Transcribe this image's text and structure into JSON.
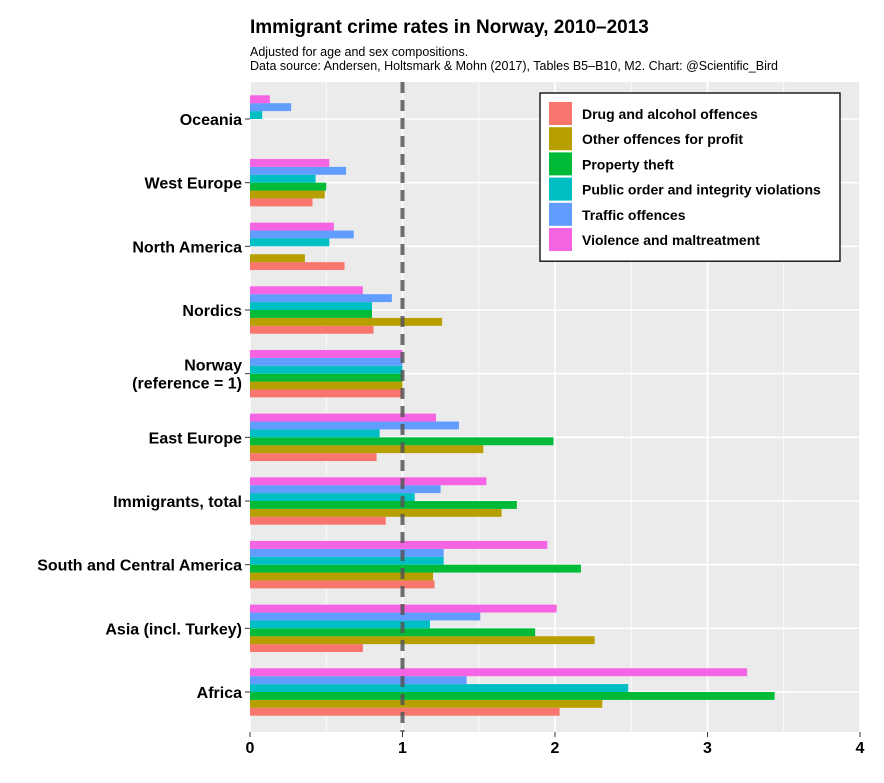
{
  "chart_data": {
    "type": "bar",
    "orientation": "horizontal",
    "title": "Immigrant crime rates in Norway, 2010–2013",
    "subtitle_lines": [
      "Adjusted for age and sex compositions.",
      "Data source: Andersen, Holtsmark & Mohn (2017), Tables B5–B10, M2.  Chart: @Scientific_Bird"
    ],
    "categories": [
      [
        "Oceania"
      ],
      [
        "West Europe"
      ],
      [
        "North America"
      ],
      [
        "Nordics"
      ],
      [
        "Norway",
        "(reference = 1)"
      ],
      [
        "East Europe"
      ],
      [
        "Immigrants, total"
      ],
      [
        "South and Central America"
      ],
      [
        "Asia (incl. Turkey)"
      ],
      [
        "Africa"
      ]
    ],
    "xlim": [
      0,
      4
    ],
    "xticks": [
      "0",
      "1",
      "2",
      "3",
      "4"
    ],
    "reference_line": 1,
    "grid": true,
    "legend_position": "top-right",
    "series": [
      {
        "name": "Drug and alcohol offences",
        "color": "#F8766D",
        "values": [
          null,
          0.41,
          0.62,
          0.81,
          1.0,
          0.83,
          0.89,
          1.21,
          0.74,
          2.03
        ]
      },
      {
        "name": "Other offences for profit",
        "color": "#B79F00",
        "values": [
          null,
          0.49,
          0.36,
          1.26,
          1.0,
          1.53,
          1.65,
          1.2,
          2.26,
          2.31
        ]
      },
      {
        "name": "Property theft",
        "color": "#00BA38",
        "values": [
          null,
          0.5,
          null,
          0.8,
          1.0,
          1.99,
          1.75,
          2.17,
          1.87,
          3.44
        ]
      },
      {
        "name": "Public order and integrity violations",
        "color": "#00BFC4",
        "values": [
          0.08,
          0.43,
          0.52,
          0.8,
          1.0,
          0.85,
          1.08,
          1.27,
          1.18,
          2.48
        ]
      },
      {
        "name": "Traffic offences",
        "color": "#619CFF",
        "values": [
          0.27,
          0.63,
          0.68,
          0.93,
          1.0,
          1.37,
          1.25,
          1.27,
          1.51,
          1.42
        ]
      },
      {
        "name": "Violence and maltreatment",
        "color": "#F564E3",
        "values": [
          0.13,
          0.52,
          0.55,
          0.74,
          1.0,
          1.22,
          1.55,
          1.95,
          2.01,
          3.26
        ]
      }
    ]
  }
}
